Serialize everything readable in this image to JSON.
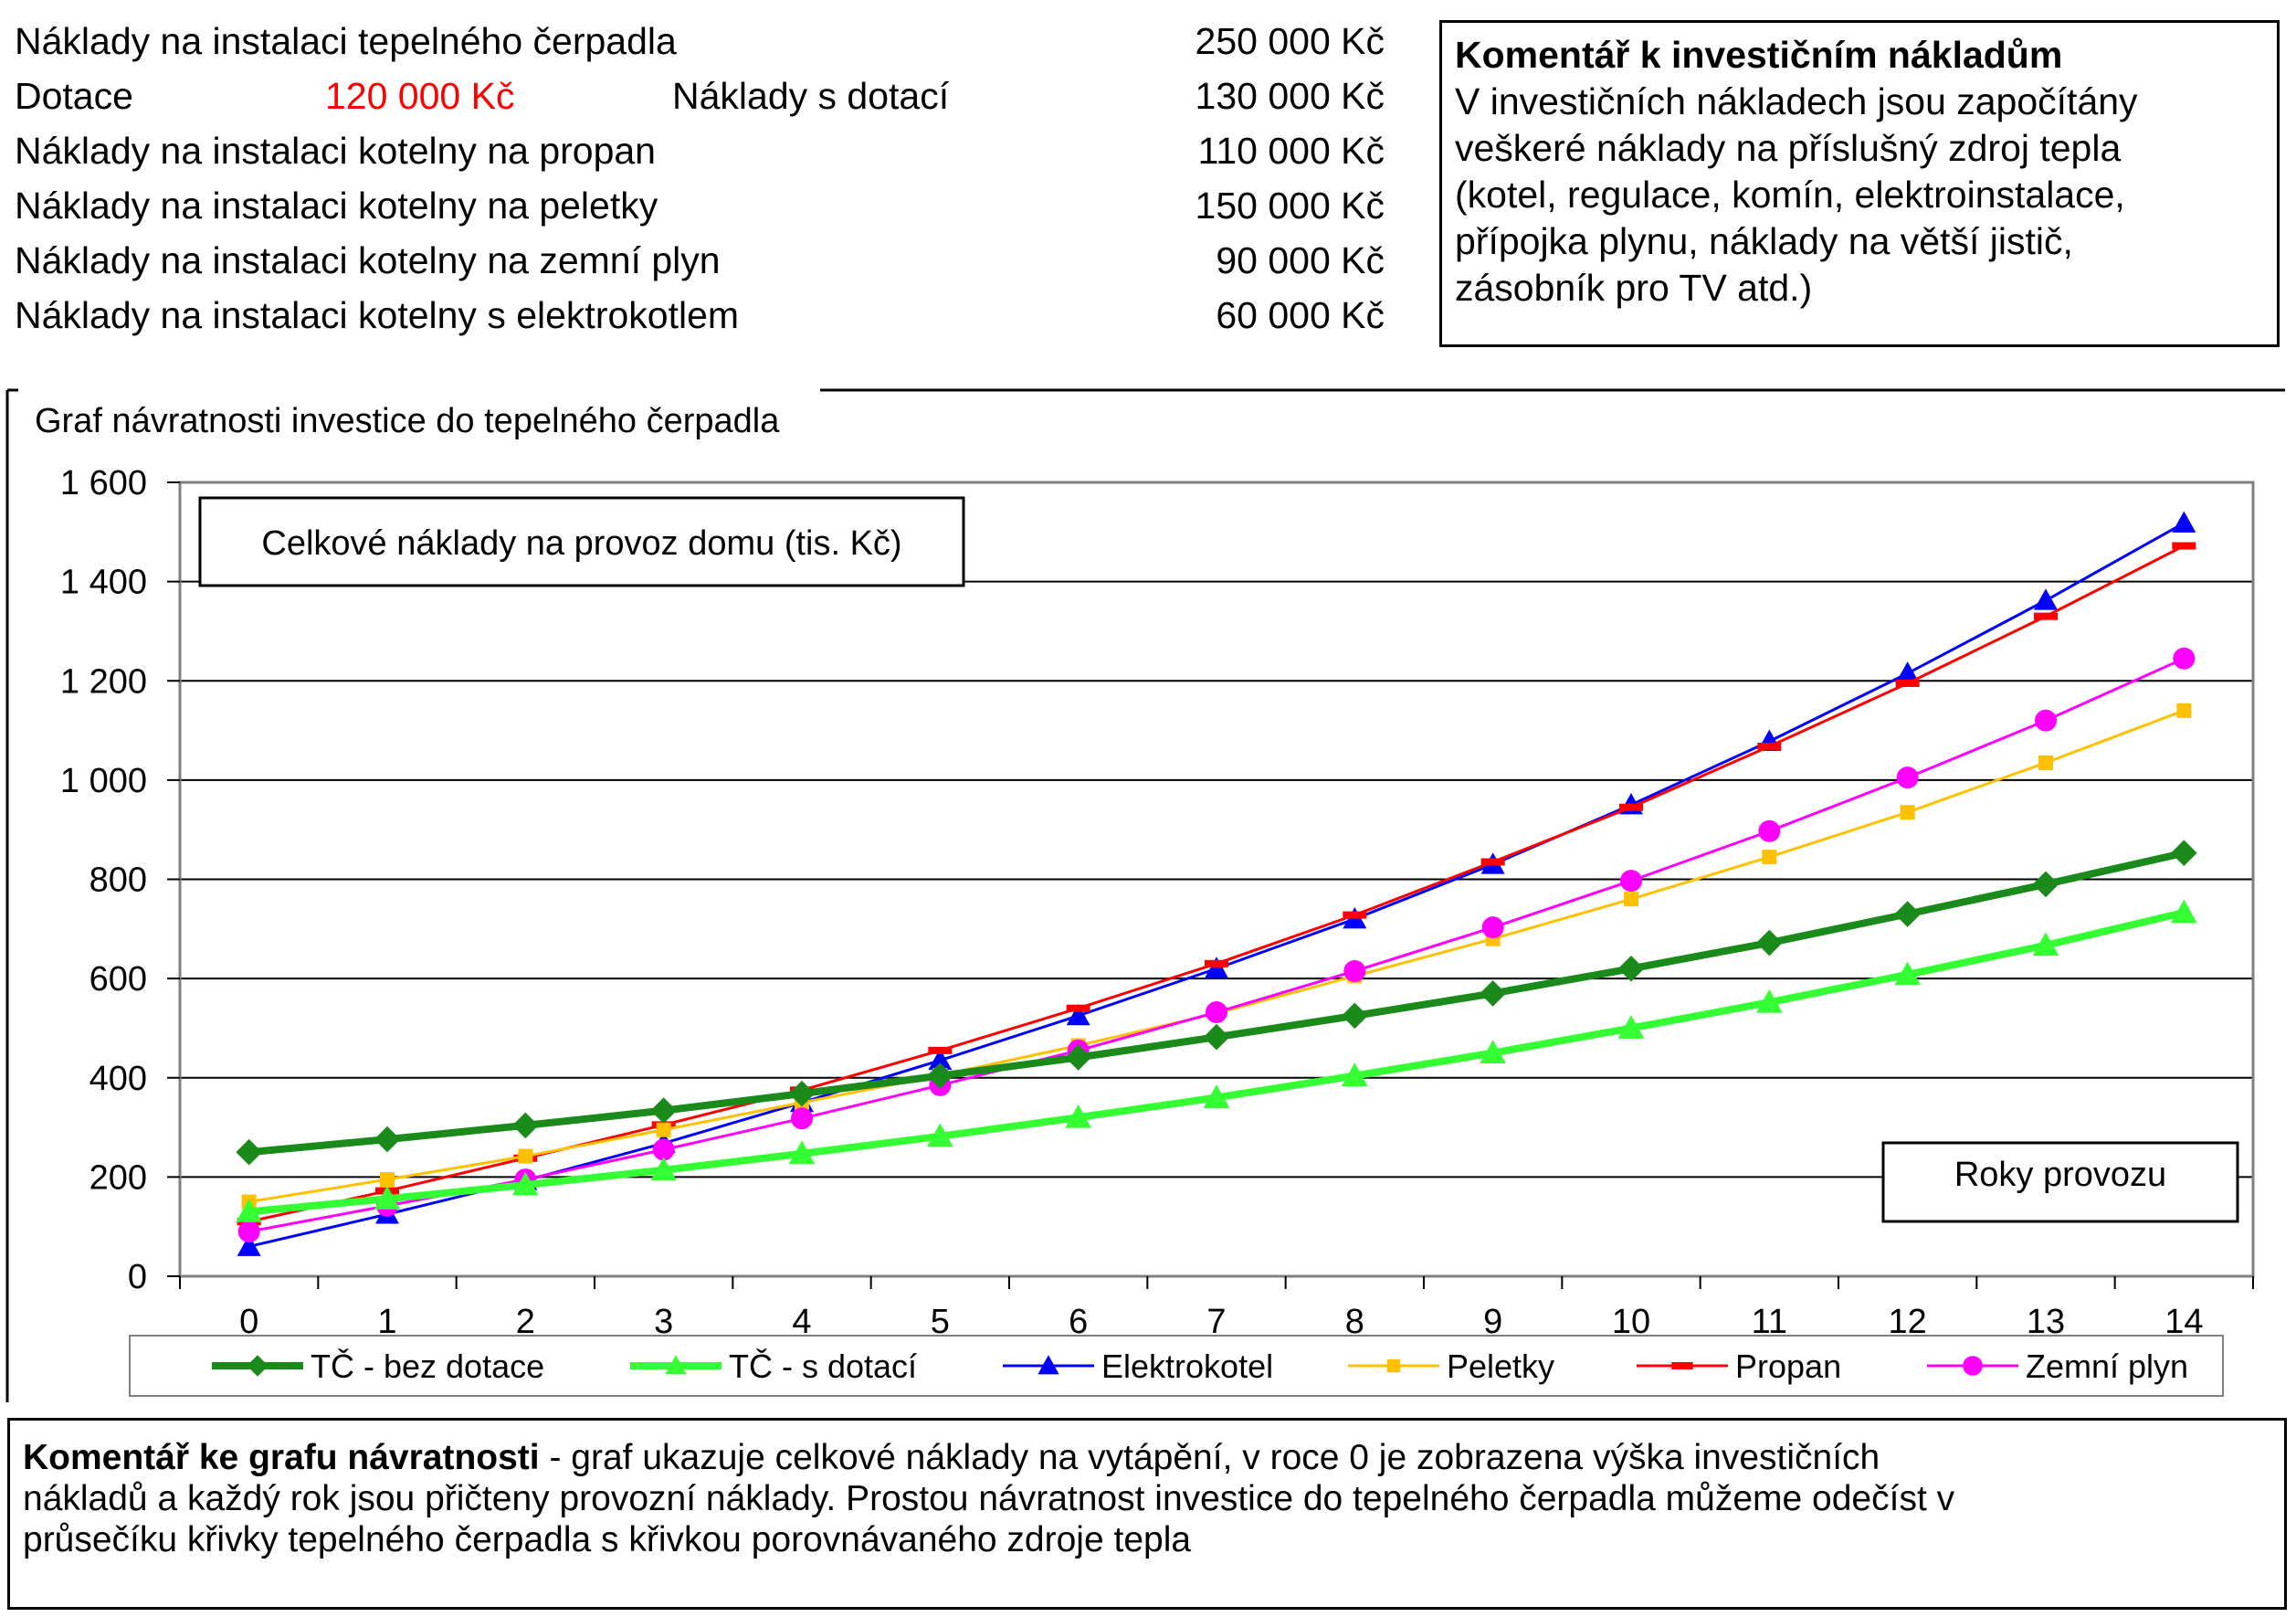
{
  "costs": {
    "heat_pump": {
      "label": "Náklady na instalaci tepelného čerpadla",
      "value": "250 000 Kč"
    },
    "subsidy": {
      "label": "Dotace",
      "subsidy_value": "120 000 Kč",
      "net_label": "Náklady s dotací",
      "value": "130 000 Kč"
    },
    "propane": {
      "label": "Náklady na instalaci kotelny na propan",
      "value": "110 000 Kč"
    },
    "pellets": {
      "label": "Náklady na instalaci kotelny na peletky",
      "value": "150 000 Kč"
    },
    "natural_gas": {
      "label": "Náklady na instalaci kotelny na zemní plyn",
      "value": "90 000 Kč"
    },
    "electric": {
      "label": "Náklady na instalaci kotelny s elektrokotlem",
      "value": "60 000 Kč"
    }
  },
  "investment_comment": {
    "title": "Komentář k investičním nákladům",
    "lines": [
      "V investičních nákladech jsou započítány",
      "veškeré náklady na příslušný zdroj tepla",
      "(kotel, regulace, komín, elektroinstalace,",
      "přípojka plynu, náklady na větší jistič,",
      "zásobník pro TV atd.)"
    ]
  },
  "chart_comment": {
    "title": "Komentář ke grafu návratnosti",
    "lines": [
      " - graf ukazuje celkové náklady na vytápění, v roce 0 je zobrazena výška investičních",
      "nákladů a každý rok jsou přičteny provozní náklady. Prostou návratnost investice do tepelného čerpadla můžeme odečíst v",
      "průsečíku křivky tepelného čerpadla s křivkou porovnávaného zdroje tepla"
    ]
  },
  "chart_data": {
    "type": "line",
    "title": "Graf návratnosti investice do tepelného čerpadla",
    "ylabel": "Celkové náklady na provoz domu (tis. Kč)",
    "xlabel": "Roky provozu",
    "x": [
      0,
      1,
      2,
      3,
      4,
      5,
      6,
      7,
      8,
      9,
      10,
      11,
      12,
      13,
      14
    ],
    "ylim": [
      0,
      1600
    ],
    "yticks": [
      0,
      200,
      400,
      600,
      800,
      1000,
      1200,
      1400,
      1600
    ],
    "ytick_labels": [
      "0",
      "200",
      "400",
      "600",
      "800",
      "1 000",
      "1 200",
      "1 400",
      "1 600"
    ],
    "grid": true,
    "legend_position": "bottom",
    "series": [
      {
        "name": "Elektrokotel",
        "color": "#0000ff",
        "marker": "triangle",
        "width": 3,
        "values": [
          60,
          125,
          193,
          268,
          350,
          435,
          525,
          620,
          720,
          830,
          950,
          1078,
          1215,
          1362,
          1518
        ]
      },
      {
        "name": "Propan",
        "color": "#ff0000",
        "marker": "dash",
        "width": 3,
        "values": [
          110,
          172,
          238,
          305,
          375,
          455,
          540,
          630,
          728,
          835,
          945,
          1068,
          1195,
          1330,
          1472
        ]
      },
      {
        "name": "Peletky",
        "color": "#ffc000",
        "marker": "square",
        "width": 3,
        "values": [
          150,
          195,
          242,
          295,
          350,
          405,
          465,
          530,
          605,
          680,
          760,
          845,
          935,
          1035,
          1140
        ]
      },
      {
        "name": "Zemní plyn",
        "color": "#ff00ff",
        "marker": "circle",
        "width": 3,
        "values": [
          90,
          142,
          195,
          255,
          318,
          385,
          455,
          532,
          615,
          703,
          797,
          897,
          1005,
          1120,
          1245
        ]
      },
      {
        "name": "TČ - bez dotace",
        "color": "#1a8a1a",
        "marker": "diamond",
        "width": 8,
        "values": [
          250,
          276,
          304,
          334,
          368,
          404,
          441,
          482,
          525,
          570,
          620,
          672,
          730,
          790,
          853
        ]
      },
      {
        "name": "TČ - s dotací",
        "color": "#33ff33",
        "marker": "triangle",
        "width": 8,
        "values": [
          130,
          156,
          184,
          214,
          247,
          282,
          320,
          360,
          404,
          450,
          500,
          552,
          608,
          667,
          733
        ]
      }
    ],
    "legend_order": [
      "TČ - bez dotace",
      "TČ - s dotací",
      "Elektrokotel",
      "Peletky",
      "Propan",
      "Zemní plyn"
    ]
  }
}
